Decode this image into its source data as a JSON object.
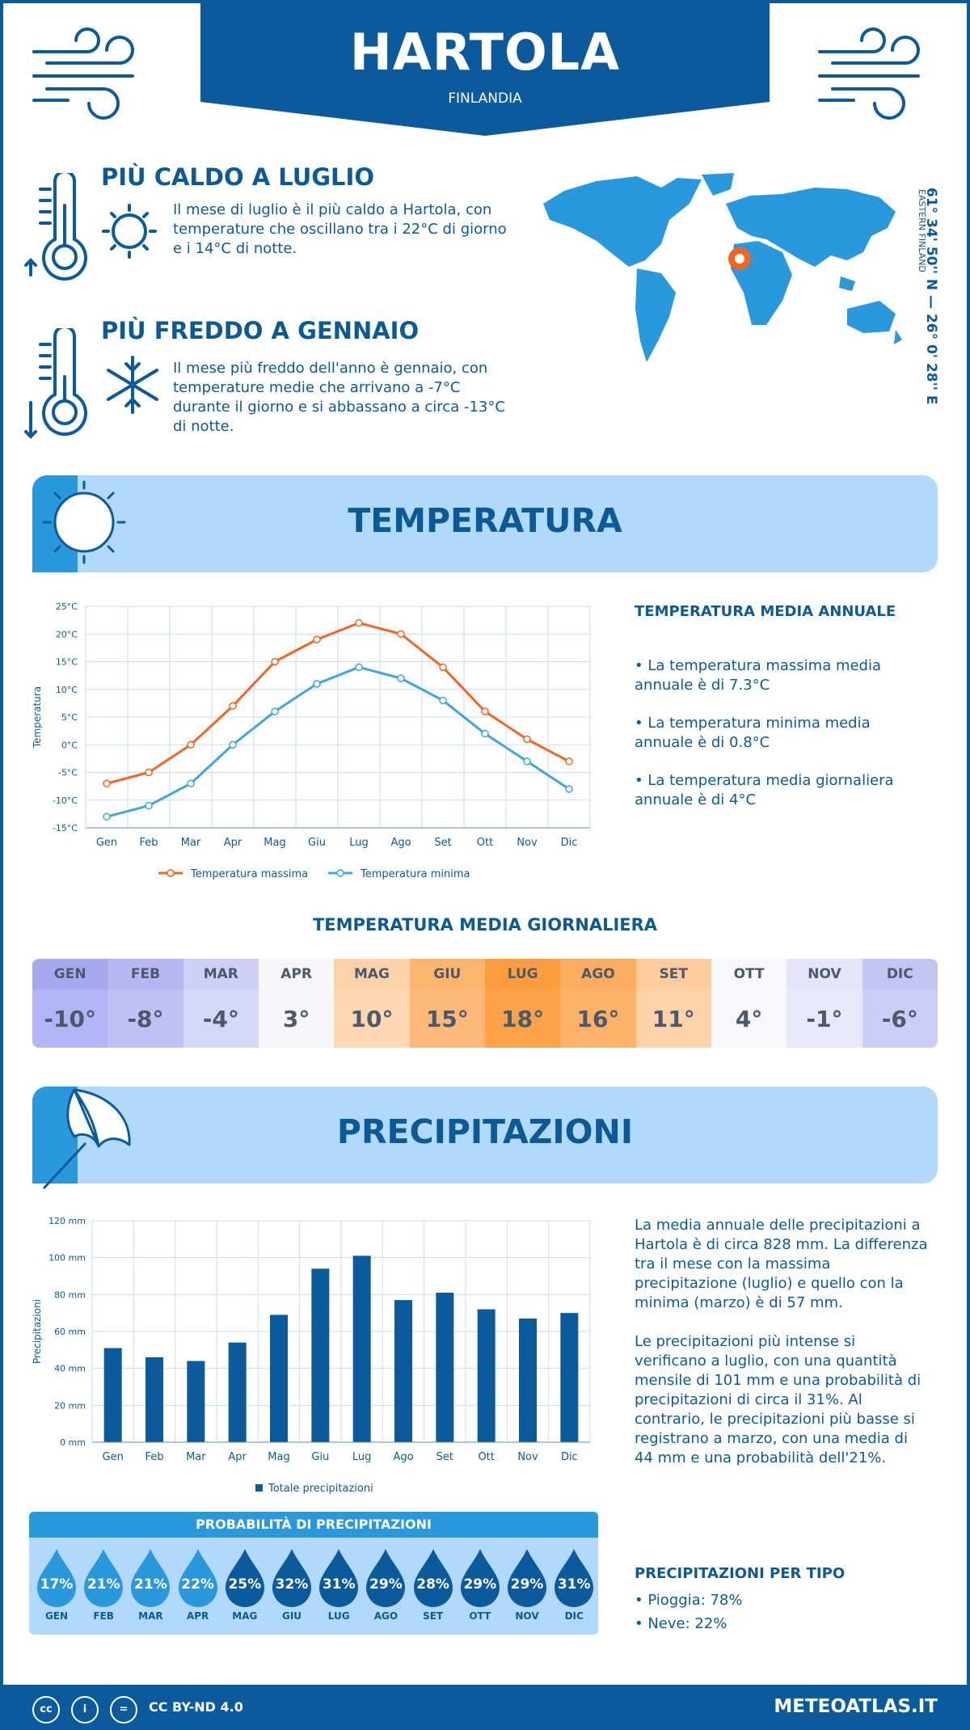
{
  "header": {
    "city": "HARTOLA",
    "country": "FINLANDIA"
  },
  "facts": {
    "hot_title": "PIÙ CALDO A LUGLIO",
    "hot_text": "Il mese di luglio è il più caldo a Hartola, con temperature che oscillano tra i 22°C di giorno e i 14°C di notte.",
    "cold_title": "PIÙ FREDDO A GENNAIO",
    "cold_text": "Il mese più freddo dell'anno è gennaio, con temperature medie che arrivano a -7°C durante il giorno e si abbassano a circa -13°C di notte."
  },
  "coordinates": {
    "main": "61° 34' 50'' N — 26° 0' 28'' E",
    "region": "EASTERN FINLAND"
  },
  "temperature_section": {
    "title": "TEMPERATURA",
    "annual_title": "TEMPERATURA MEDIA ANNUALE",
    "annual_points": [
      "• La temperatura massima media annuale è di 7.3°C",
      "• La temperatura minima media annuale è di 0.8°C",
      "• La temperatura media giornaliera annuale è di 4°C"
    ],
    "daily_title": "TEMPERATURA MEDIA GIORNALIERA",
    "daily": [
      {
        "month": "GEN",
        "value": "-10°",
        "bg_head": "#a8a8ef",
        "bg": "#b3b3f5"
      },
      {
        "month": "FEB",
        "value": "-8°",
        "bg_head": "#b6b6f2",
        "bg": "#c0c0f7"
      },
      {
        "month": "MAR",
        "value": "-4°",
        "bg_head": "#cfcff7",
        "bg": "#d7d7fa"
      },
      {
        "month": "APR",
        "value": "3°",
        "bg_head": "#f6f6fb",
        "bg": "#f6f6fb"
      },
      {
        "month": "MAG",
        "value": "10°",
        "bg_head": "#fdd2a8",
        "bg": "#fed8b3"
      },
      {
        "month": "GIU",
        "value": "15°",
        "bg_head": "#fdb56e",
        "bg": "#feb877"
      },
      {
        "month": "LUG",
        "value": "18°",
        "bg_head": "#fd9d3f",
        "bg": "#fea24a"
      },
      {
        "month": "AGO",
        "value": "16°",
        "bg_head": "#fdad60",
        "bg": "#feb168"
      },
      {
        "month": "SET",
        "value": "11°",
        "bg_head": "#fdcb9d",
        "bg": "#fed2a8"
      },
      {
        "month": "OTT",
        "value": "4°",
        "bg_head": "#f8f8fc",
        "bg": "#f8f8fc"
      },
      {
        "month": "NOV",
        "value": "-1°",
        "bg_head": "#e4e4fa",
        "bg": "#e8e8fc"
      },
      {
        "month": "DIC",
        "value": "-6°",
        "bg_head": "#c5c5f5",
        "bg": "#cdcdf8"
      }
    ]
  },
  "precip_section": {
    "title": "PRECIPITAZIONI",
    "text1": "La media annuale delle precipitazioni a Hartola è di circa 828 mm. La differenza tra il mese con la massima precipitazione (luglio) e quello con la minima (marzo) è di 57 mm.",
    "text2": "Le precipitazioni più intense si verificano a luglio, con una quantità mensile di 101 mm e una probabilità di precipitazioni di circa il 31%. Al contrario, le precipitazioni più basse si registrano a marzo, con una media di 44 mm e una probabilità dell'21%.",
    "prob_title": "PROBABILITÀ DI PRECIPITAZIONI",
    "prob": [
      {
        "month": "GEN",
        "pct": "17%",
        "color": "#2a98dc"
      },
      {
        "month": "FEB",
        "pct": "21%",
        "color": "#2a98dc"
      },
      {
        "month": "MAR",
        "pct": "21%",
        "color": "#2a98dc"
      },
      {
        "month": "APR",
        "pct": "22%",
        "color": "#2a98dc"
      },
      {
        "month": "MAG",
        "pct": "25%",
        "color": "#0a5a9c"
      },
      {
        "month": "GIU",
        "pct": "32%",
        "color": "#0a5a9c"
      },
      {
        "month": "LUG",
        "pct": "31%",
        "color": "#0a5a9c"
      },
      {
        "month": "AGO",
        "pct": "29%",
        "color": "#0a5a9c"
      },
      {
        "month": "SET",
        "pct": "28%",
        "color": "#0a5a9c"
      },
      {
        "month": "OTT",
        "pct": "29%",
        "color": "#0a5a9c"
      },
      {
        "month": "NOV",
        "pct": "29%",
        "color": "#0a5a9c"
      },
      {
        "month": "DIC",
        "pct": "31%",
        "color": "#0a5a9c"
      }
    ],
    "type_title": "PRECIPITAZIONI PER TIPO",
    "type_rain": "• Pioggia: 78%",
    "type_snow": "• Neve: 22%"
  },
  "footer": {
    "license": "CC BY-ND 4.0",
    "site": "METEOATLAS.IT"
  },
  "chart_data": [
    {
      "type": "line",
      "categories": [
        "Gen",
        "Feb",
        "Mar",
        "Apr",
        "Mag",
        "Giu",
        "Lug",
        "Ago",
        "Set",
        "Ott",
        "Nov",
        "Dic"
      ],
      "series": [
        {
          "name": "Temperatura massima",
          "values": [
            -7,
            -5,
            0,
            7,
            15,
            19,
            22,
            20,
            14,
            6,
            1,
            -3
          ],
          "color": "#f26522"
        },
        {
          "name": "Temperatura minima",
          "values": [
            -13,
            -11,
            -7,
            0,
            6,
            11,
            14,
            12,
            8,
            2,
            -3,
            -8
          ],
          "color": "#3ea6dc"
        }
      ],
      "ylabel": "Temperatura",
      "ylim": [
        -15,
        25
      ],
      "yticks": [
        "-15°C",
        "-10°C",
        "-5°C",
        "0°C",
        "5°C",
        "10°C",
        "15°C",
        "20°C",
        "25°C"
      ],
      "grid": true,
      "legend": "bottom"
    },
    {
      "type": "bar",
      "categories": [
        "Gen",
        "Feb",
        "Mar",
        "Apr",
        "Mag",
        "Giu",
        "Lug",
        "Ago",
        "Set",
        "Ott",
        "Nov",
        "Dic"
      ],
      "series": [
        {
          "name": "Totale precipitazioni",
          "values": [
            51,
            46,
            44,
            54,
            69,
            94,
            101,
            77,
            81,
            72,
            67,
            70
          ],
          "color": "#0a5a9c"
        }
      ],
      "ylabel": "Precipitazioni",
      "ylim": [
        0,
        120
      ],
      "yticks": [
        "0 mm",
        "20 mm",
        "40 mm",
        "60 mm",
        "80 mm",
        "100 mm",
        "120 mm"
      ],
      "grid": true,
      "legend": "bottom"
    }
  ]
}
